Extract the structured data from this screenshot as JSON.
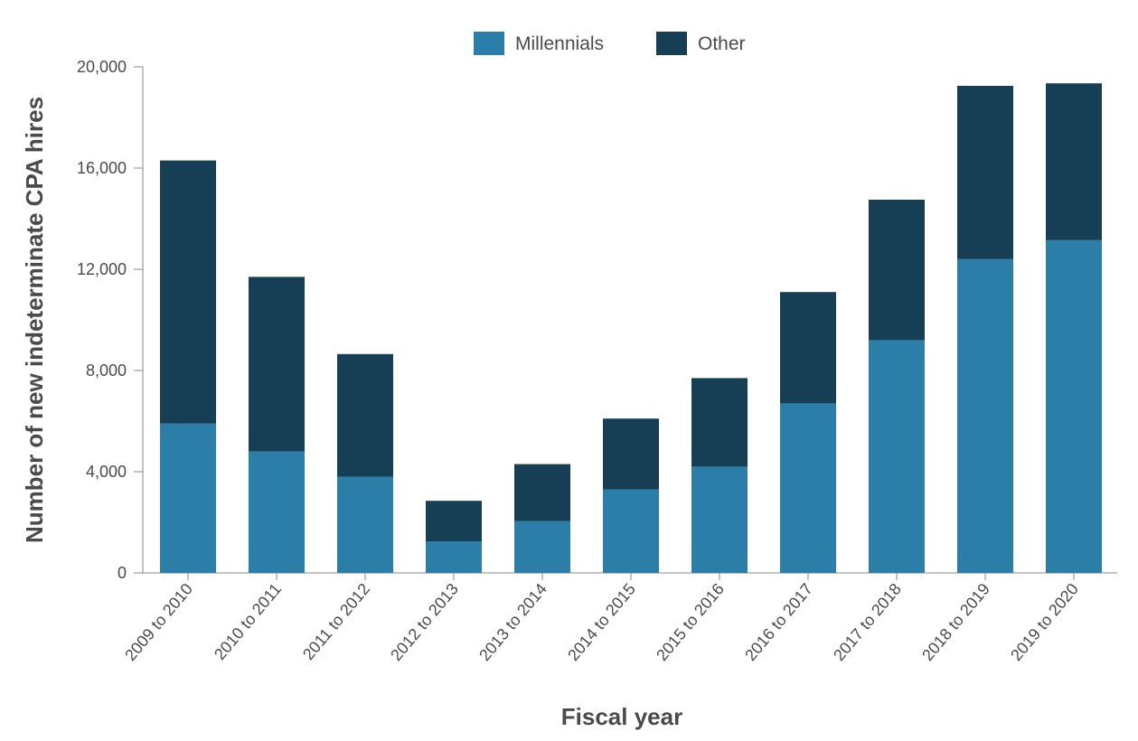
{
  "chart_data": {
    "type": "bar",
    "stacked": true,
    "title": "",
    "xlabel": "Fiscal year",
    "ylabel": "Number of new indeterminate CPA hires",
    "ylim": [
      0,
      20000
    ],
    "y_ticks": [
      0,
      4000,
      8000,
      12000,
      16000,
      20000
    ],
    "y_tick_labels": [
      "0",
      "4,000",
      "8,000",
      "12,000",
      "16,000",
      "20,000"
    ],
    "grid": false,
    "legend_position": "top-center",
    "categories": [
      "2009 to 2010",
      "2010 to 2011",
      "2011 to 2012",
      "2012 to 2013",
      "2013 to 2014",
      "2014 to 2015",
      "2015 to 2016",
      "2016 to 2017",
      "2017 to 2018",
      "2018 to 2019",
      "2019 to 2020"
    ],
    "series": [
      {
        "name": "Millennials",
        "color": "#2a7ea8",
        "values": [
          5900,
          4800,
          3800,
          1250,
          2050,
          3300,
          4200,
          6700,
          9200,
          12400,
          13150
        ]
      },
      {
        "name": "Other",
        "color": "#163f55",
        "values": [
          10400,
          6900,
          4850,
          1600,
          2250,
          2800,
          3500,
          4400,
          5550,
          6850,
          6200
        ]
      }
    ]
  }
}
